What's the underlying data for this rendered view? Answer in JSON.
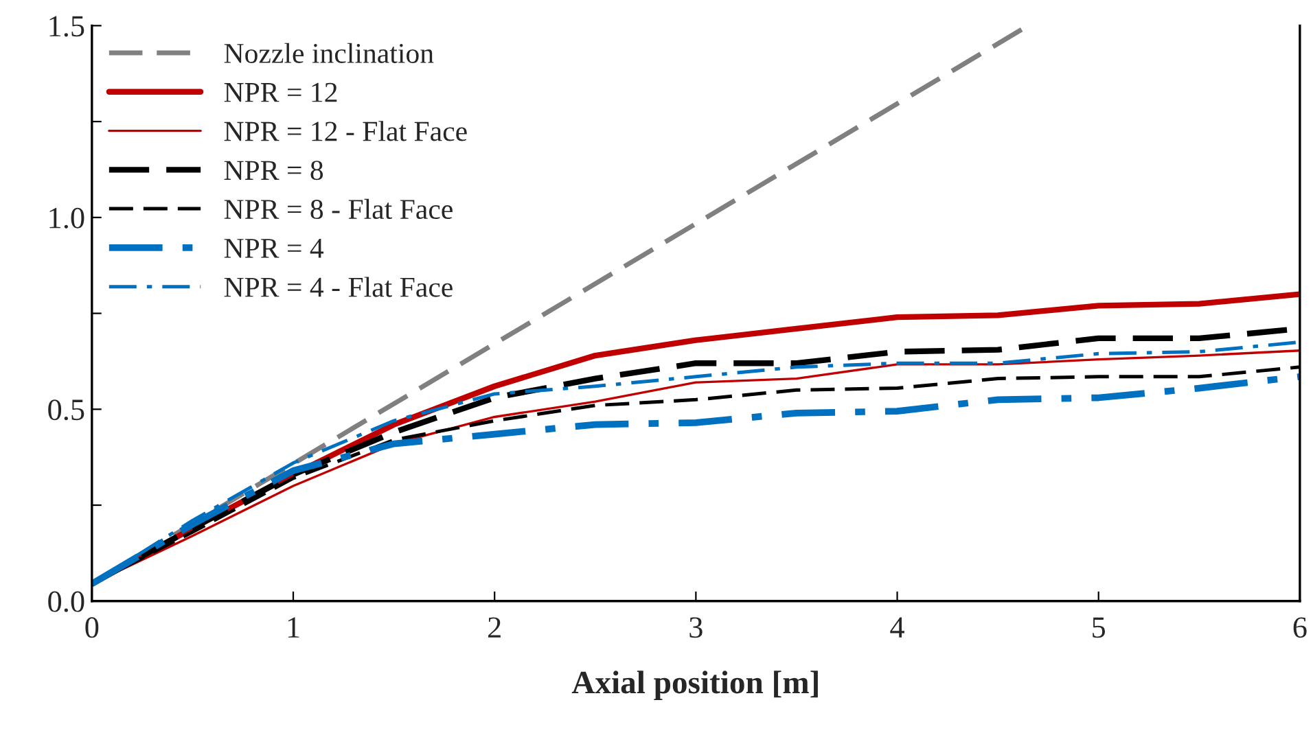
{
  "chart_data": {
    "type": "line",
    "xlabel": "Axial position [m]",
    "xlim": [
      0,
      6
    ],
    "xticks": [
      0,
      1,
      2,
      3,
      4,
      5,
      6
    ],
    "ylim": [
      0,
      1.5
    ],
    "yticks": [
      {
        "value": 0,
        "label": "0.0"
      },
      {
        "value": 0.25,
        "label": null
      },
      {
        "value": 0.5,
        "label": "0.5"
      },
      {
        "value": 0.75,
        "label": null
      },
      {
        "value": 1.0,
        "label": "1.0"
      },
      {
        "value": 1.25,
        "label": null
      },
      {
        "value": 1.5,
        "label": "1.5"
      }
    ],
    "grid": false,
    "legend": "top left",
    "marker": "none",
    "x": [
      0,
      0.5,
      1,
      1.5,
      2,
      2.5,
      3,
      3.5,
      4,
      4.5,
      5,
      5.5,
      6
    ],
    "series": [
      {
        "name": "Nozzle inclination",
        "color": "#808080",
        "line_style": "dashed",
        "x": [
          0,
          4.65
        ],
        "values": [
          0.045,
          1.5
        ]
      },
      {
        "name": "NPR = 12",
        "color": "#c00000",
        "line_style": "solid",
        "values": [
          0.045,
          0.19,
          0.33,
          0.46,
          0.56,
          0.64,
          0.68,
          0.71,
          0.74,
          0.745,
          0.77,
          0.775,
          0.8
        ]
      },
      {
        "name": "NPR = 12 - Flat Face",
        "color": "#c00000",
        "line_style": "solid",
        "values": [
          0.045,
          0.17,
          0.3,
          0.41,
          0.48,
          0.52,
          0.57,
          0.58,
          0.617,
          0.617,
          0.63,
          0.64,
          0.653
        ]
      },
      {
        "name": "NPR = 8",
        "color": "#000000",
        "line_style": "dashed",
        "values": [
          0.045,
          0.19,
          0.33,
          0.44,
          0.53,
          0.58,
          0.62,
          0.62,
          0.65,
          0.655,
          0.685,
          0.685,
          0.71
        ]
      },
      {
        "name": "NPR = 8 - Flat Face",
        "color": "#000000",
        "line_style": "dashed",
        "values": [
          0.045,
          0.18,
          0.32,
          0.42,
          0.47,
          0.51,
          0.525,
          0.55,
          0.555,
          0.58,
          0.585,
          0.585,
          0.61
        ]
      },
      {
        "name": "NPR = 4",
        "color": "#0070c0",
        "line_style": "dashdot",
        "values": [
          0.045,
          0.2,
          0.34,
          0.41,
          0.435,
          0.46,
          0.465,
          0.49,
          0.495,
          0.525,
          0.53,
          0.555,
          0.585
        ]
      },
      {
        "name": "NPR = 4 - Flat Face",
        "color": "#0070c0",
        "line_style": "dashdot",
        "values": [
          0.045,
          0.21,
          0.36,
          0.47,
          0.54,
          0.56,
          0.585,
          0.61,
          0.62,
          0.62,
          0.645,
          0.65,
          0.675
        ]
      }
    ]
  }
}
